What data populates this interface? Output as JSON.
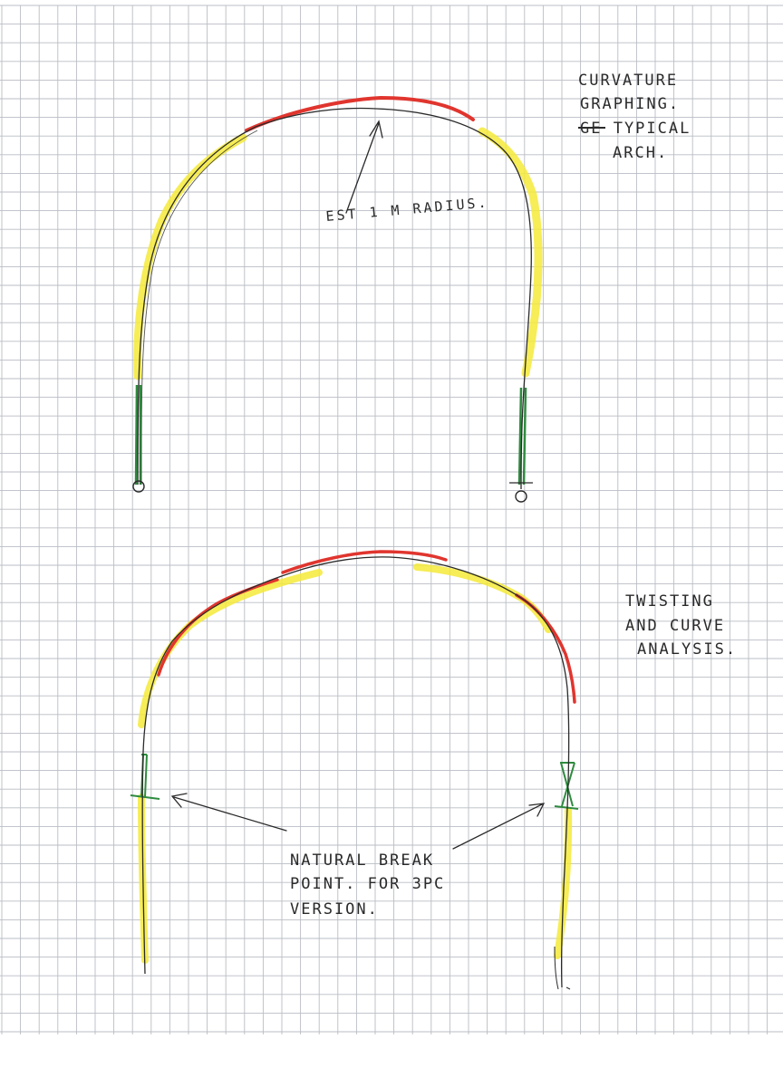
{
  "diagram_1": {
    "note_lines": [
      "CURVATURE",
      "GRAPHING.",
      "GE TYPICAL",
      "ARCH."
    ],
    "callout": "EST 1 M RADIUS."
  },
  "diagram_2": {
    "note_lines": [
      "TWISTING",
      "AND CURVE",
      "ANALYSIS."
    ],
    "callout_lines": [
      "NATURAL BREAK",
      "POINT. FOR 3PC",
      "VERSION."
    ]
  },
  "colors": {
    "grid": "#b9bdc4",
    "pencil": "#2a2a2a",
    "highlight_yellow": "#f5ea3a",
    "marker_red": "#e0352e",
    "marker_green": "#2e8b3e",
    "paper": "#ffffff"
  }
}
